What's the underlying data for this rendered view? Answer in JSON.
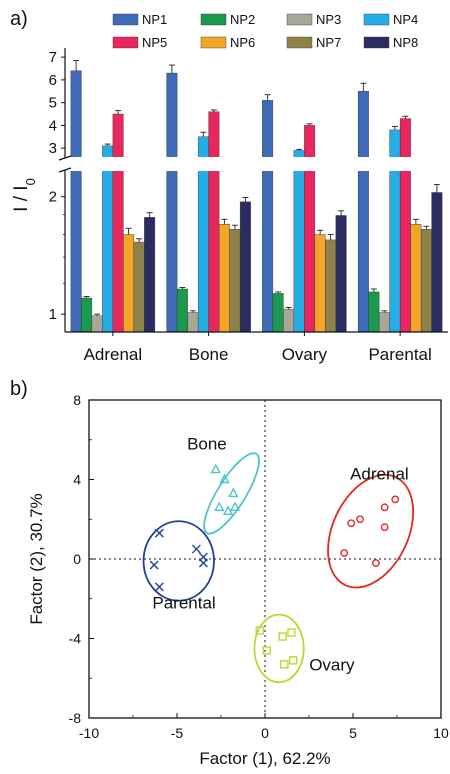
{
  "panel_a": {
    "label": "a)"
  },
  "panel_b": {
    "label": "b)"
  },
  "colors": {
    "NP1": "#3d6bb8",
    "NP2": "#1a9a4c",
    "NP3": "#a9a796",
    "NP4": "#25aee6",
    "NP5": "#e8275f",
    "NP6": "#f3a527",
    "NP7": "#8f8248",
    "NP8": "#2b2d62",
    "Adrenal": "#e02b20",
    "Bone": "#4fc4c9",
    "Ovary": "#c0d431",
    "Parental": "#233f9a"
  },
  "chart_data": [
    {
      "type": "bar",
      "ylabel": "I / I0",
      "ylabel_main": "I / I",
      "ylabel_sub": "0",
      "y_axis_broken": true,
      "y_scale_lower": "log",
      "ylim_lower": [
        0.9,
        2.3
      ],
      "ylim_upper": [
        2.7,
        7.4
      ],
      "y_ticks_lower": [
        "1",
        "2"
      ],
      "y_ticks_upper": [
        "3",
        "4",
        "5",
        "6",
        "7"
      ],
      "categories": [
        "Adrenal",
        "Bone",
        "Ovary",
        "Parental"
      ],
      "legend_position": "top",
      "series": [
        {
          "name": "NP1",
          "values": [
            6.4,
            6.3,
            5.1,
            5.5
          ],
          "errors": [
            0.45,
            0.35,
            0.25,
            0.35
          ]
        },
        {
          "name": "NP2",
          "values": [
            1.1,
            1.16,
            1.13,
            1.14
          ],
          "errors": [
            0.01,
            0.01,
            0.01,
            0.02
          ]
        },
        {
          "name": "NP3",
          "values": [
            0.99,
            1.01,
            1.03,
            1.01
          ],
          "errors": [
            0.01,
            0.01,
            0.01,
            0.01
          ]
        },
        {
          "name": "NP4",
          "values": [
            3.1,
            3.5,
            2.9,
            3.8
          ],
          "errors": [
            0.08,
            0.2,
            0.05,
            0.15
          ]
        },
        {
          "name": "NP5",
          "values": [
            4.5,
            4.6,
            4.0,
            4.3
          ],
          "errors": [
            0.15,
            0.08,
            0.07,
            0.1
          ]
        },
        {
          "name": "NP6",
          "values": [
            1.6,
            1.7,
            1.6,
            1.7
          ],
          "errors": [
            0.06,
            0.05,
            0.04,
            0.05
          ]
        },
        {
          "name": "NP7",
          "values": [
            1.53,
            1.65,
            1.55,
            1.65
          ],
          "errors": [
            0.03,
            0.04,
            0.05,
            0.03
          ]
        },
        {
          "name": "NP8",
          "values": [
            1.77,
            1.94,
            1.79,
            2.05
          ],
          "errors": [
            0.05,
            0.05,
            0.05,
            0.1
          ]
        }
      ]
    },
    {
      "type": "scatter",
      "xlabel": "Factor (1), 62.2%",
      "ylabel": "Factor (2), 30.7%",
      "xlim": [
        -10,
        10
      ],
      "ylim": [
        -8,
        8
      ],
      "x_ticks": [
        "-10",
        "-5",
        "0",
        "5",
        "10"
      ],
      "y_ticks": [
        "-8",
        "-4",
        "0",
        "4",
        "8"
      ],
      "zero_lines": "dotted",
      "groups": [
        {
          "name": "Adrenal",
          "marker": "circle",
          "points": [
            [
              4.5,
              0.3
            ],
            [
              4.9,
              1.8
            ],
            [
              5.4,
              2.0
            ],
            [
              6.3,
              -0.2
            ],
            [
              6.8,
              1.6
            ],
            [
              6.8,
              2.6
            ],
            [
              7.4,
              3.0
            ]
          ],
          "ellipse": {
            "center": [
              6.0,
              1.4
            ],
            "rx": 2.15,
            "ry": 3.0,
            "angle": 25
          }
        },
        {
          "name": "Bone",
          "marker": "triangle",
          "points": [
            [
              -2.8,
              4.5
            ],
            [
              -2.3,
              4.0
            ],
            [
              -1.8,
              3.3
            ],
            [
              -1.7,
              2.6
            ],
            [
              -2.1,
              2.4
            ],
            [
              -2.6,
              2.6
            ]
          ],
          "ellipse": {
            "center": [
              -1.9,
              3.3
            ],
            "rx": 2.65,
            "ry": 0.7,
            "angle": -58
          }
        },
        {
          "name": "Ovary",
          "marker": "square",
          "points": [
            [
              -0.3,
              -3.6
            ],
            [
              0.1,
              -4.6
            ],
            [
              1.0,
              -3.9
            ],
            [
              1.1,
              -5.3
            ],
            [
              1.5,
              -3.7
            ],
            [
              1.6,
              -5.1
            ]
          ],
          "ellipse": {
            "center": [
              0.8,
              -4.5
            ],
            "rx": 1.4,
            "ry": 1.7,
            "angle": 0
          }
        },
        {
          "name": "Parental",
          "marker": "cross",
          "points": [
            [
              -6.0,
              1.3
            ],
            [
              -6.0,
              -1.4
            ],
            [
              -6.3,
              -0.3
            ],
            [
              -3.9,
              0.5
            ],
            [
              -3.5,
              -0.2
            ],
            [
              -3.5,
              0.1
            ]
          ],
          "ellipse": {
            "center": [
              -4.9,
              -0.1
            ],
            "rx": 2.0,
            "ry": 2.0,
            "angle": 0
          }
        }
      ],
      "annotations": [
        {
          "text": "Adrenal",
          "at": [
            6.5,
            4.0
          ]
        },
        {
          "text": "Bone",
          "at": [
            -3.3,
            5.5
          ]
        },
        {
          "text": "Ovary",
          "at": [
            3.8,
            -5.6
          ]
        },
        {
          "text": "Parental",
          "at": [
            -4.6,
            -2.5
          ]
        }
      ]
    }
  ]
}
